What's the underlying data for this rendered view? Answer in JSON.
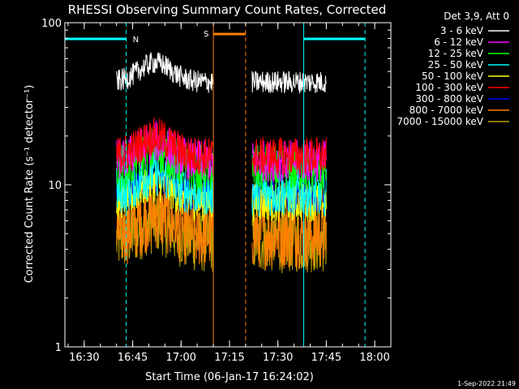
{
  "chart_data": {
    "type": "line",
    "title": "RHESSI Observing Summary Count Rates, Corrected",
    "xlabel": "Start Time (06-Jan-17 16:24:02)",
    "ylabel": "Corrected Count Rate (s⁻¹ detector⁻¹)",
    "y_scale": "log",
    "ylim": [
      1,
      100
    ],
    "xlim": [
      "16:24",
      "18:05"
    ],
    "x_ticks": [
      "16:30",
      "16:45",
      "17:00",
      "17:15",
      "17:30",
      "17:45",
      "18:00"
    ],
    "y_ticks": [
      "1",
      "10",
      "100"
    ],
    "legend_header": "Det 3,9, Att 0",
    "legend_position": "top-right",
    "series": [
      {
        "name": "3 - 6 keV",
        "color": "#ffffff",
        "level": 43,
        "amp": 0.07
      },
      {
        "name": "6 - 12 keV",
        "color": "#ff00ff",
        "level": 14,
        "amp": 0.13
      },
      {
        "name": "12 - 25 keV",
        "color": "#00ff00",
        "level": 12.5,
        "amp": 0.15
      },
      {
        "name": "25 - 50 keV",
        "color": "#00ffff",
        "level": 9,
        "amp": 0.15
      },
      {
        "name": "50 - 100 keV",
        "color": "#ffff00",
        "level": 7.8,
        "amp": 0.12
      },
      {
        "name": "100 - 300 keV",
        "color": "#ff0000",
        "level": 15,
        "amp": 0.12
      },
      {
        "name": "300 - 800 keV",
        "color": "#0000ff",
        "level": 8.5,
        "amp": 0.1
      },
      {
        "name": "800 - 7000 keV",
        "color": "#ff8000",
        "level": 5,
        "amp": 0.22
      },
      {
        "name": "7000 - 15000 keV",
        "color": "#b8a000",
        "level": 4.5,
        "amp": 0.2
      }
    ],
    "segments": [
      [
        "16:40",
        "17:10"
      ],
      [
        "17:22",
        "17:45"
      ]
    ],
    "night_intervals": {
      "label": "N",
      "color": "#00ffff",
      "lines": [
        "16:24",
        "16:43",
        "17:38",
        "17:57"
      ],
      "bars": [
        [
          "16:24",
          "16:43"
        ],
        [
          "17:38",
          "17:57"
        ]
      ]
    },
    "saa_intervals": {
      "label": "S",
      "color": "#ff8000",
      "lines": [
        "17:10",
        "17:20"
      ],
      "bars": [
        [
          "17:10",
          "17:20"
        ]
      ]
    },
    "timestamp": "1-Sep-2022 21:49"
  }
}
